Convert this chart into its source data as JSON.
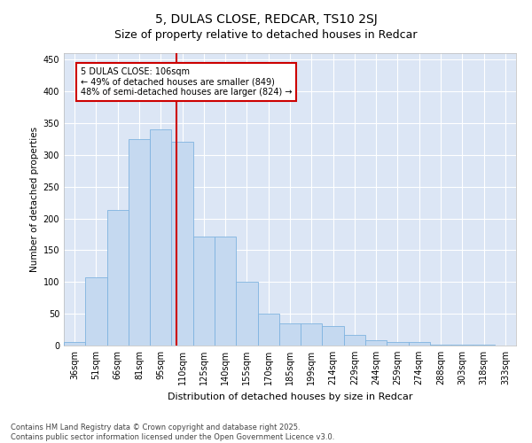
{
  "title": "5, DULAS CLOSE, REDCAR, TS10 2SJ",
  "subtitle": "Size of property relative to detached houses in Redcar",
  "xlabel": "Distribution of detached houses by size in Redcar",
  "ylabel": "Number of detached properties",
  "categories": [
    "36sqm",
    "51sqm",
    "66sqm",
    "81sqm",
    "95sqm",
    "110sqm",
    "125sqm",
    "140sqm",
    "155sqm",
    "170sqm",
    "185sqm",
    "199sqm",
    "214sqm",
    "229sqm",
    "244sqm",
    "259sqm",
    "274sqm",
    "288sqm",
    "303sqm",
    "318sqm",
    "333sqm"
  ],
  "values": [
    5,
    107,
    213,
    325,
    340,
    320,
    172,
    172,
    100,
    50,
    35,
    35,
    30,
    17,
    8,
    5,
    5,
    1,
    1,
    1,
    0
  ],
  "bar_color": "#c5d9f0",
  "bar_edge_color": "#7fb3e0",
  "vline_color": "#cc0000",
  "vline_x": 4.73,
  "annotation_text": "5 DULAS CLOSE: 106sqm\n← 49% of detached houses are smaller (849)\n48% of semi-detached houses are larger (824) →",
  "ylim": [
    0,
    460
  ],
  "yticks": [
    0,
    50,
    100,
    150,
    200,
    250,
    300,
    350,
    400,
    450
  ],
  "bg_color": "#dce6f5",
  "grid_color": "#ffffff",
  "footer_text": "Contains HM Land Registry data © Crown copyright and database right 2025.\nContains public sector information licensed under the Open Government Licence v3.0.",
  "title_fontsize": 10,
  "subtitle_fontsize": 9,
  "xlabel_fontsize": 8,
  "ylabel_fontsize": 7.5,
  "tick_fontsize": 7,
  "annotation_fontsize": 7,
  "footer_fontsize": 6
}
